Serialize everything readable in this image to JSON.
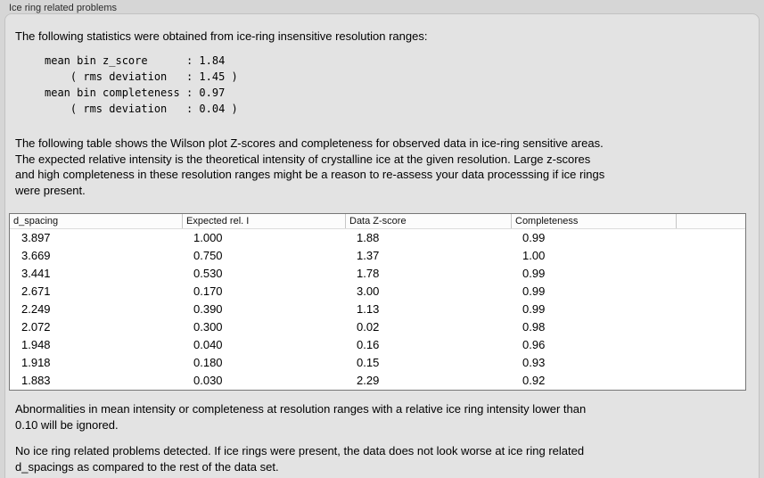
{
  "panel": {
    "title": "Ice ring related problems"
  },
  "intro": "The following statistics were obtained from ice-ring insensitive resolution ranges:",
  "stats_block": "mean bin z_score      : 1.84\n    ( rms deviation   : 1.45 )\nmean bin completeness : 0.97\n    ( rms deviation   : 0.04 )",
  "stats": {
    "mean_bin_z_score": "1.84",
    "z_score_rms_deviation": "1.45",
    "mean_bin_completeness": "0.97",
    "completeness_rms_deviation": "0.04"
  },
  "table_intro": "The following table shows the Wilson plot Z-scores and completeness for observed data in ice-ring sensitive areas.\nThe expected relative intensity is the theoretical intensity of crystalline ice at the given resolution. Large z-scores\nand high completeness in these resolution ranges might be a reason to re-assess your data processsing if ice rings\nwere present.",
  "table": {
    "columns": [
      "d_spacing",
      "Expected rel. I",
      "Data Z-score",
      "Completeness",
      ""
    ],
    "rows": [
      [
        "3.897",
        "1.000",
        "1.88",
        "0.99"
      ],
      [
        "3.669",
        "0.750",
        "1.37",
        "1.00"
      ],
      [
        "3.441",
        "0.530",
        "1.78",
        "0.99"
      ],
      [
        "2.671",
        "0.170",
        "3.00",
        "0.99"
      ],
      [
        "2.249",
        "0.390",
        "1.13",
        "0.99"
      ],
      [
        "2.072",
        "0.300",
        "0.02",
        "0.98"
      ],
      [
        "1.948",
        "0.040",
        "0.16",
        "0.96"
      ],
      [
        "1.918",
        "0.180",
        "0.15",
        "0.93"
      ],
      [
        "1.883",
        "0.030",
        "2.29",
        "0.92"
      ]
    ]
  },
  "note_ignore": "Abnormalities in mean intensity or completeness at resolution ranges with a relative ice ring intensity lower than\n0.10 will be ignored.",
  "conclusion": "No ice ring related problems detected. If ice rings were present, the data does not look worse at ice ring related\nd_spacings as compared to the rest of the data set.",
  "colors": {
    "outer_background": "#d6d6d6",
    "panel_background": "#e3e3e3",
    "panel_border": "#c2c2c2",
    "table_background": "#ffffff",
    "table_border": "#767676",
    "text": "#000000"
  }
}
